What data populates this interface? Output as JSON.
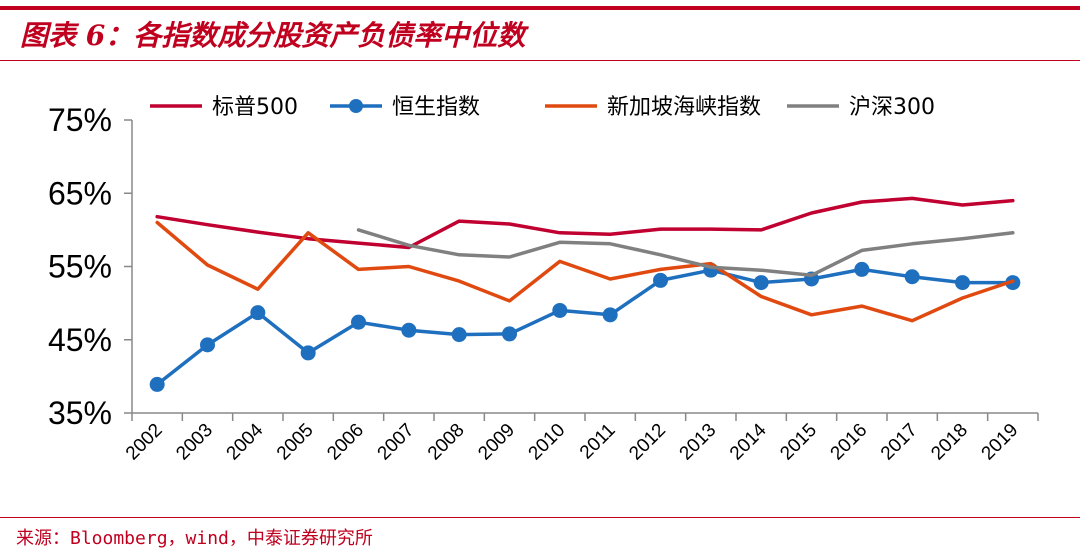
{
  "header": {
    "title": "图表 6：各指数成分股资产负债率中位数"
  },
  "footer": {
    "source": "来源：Bloomberg，wind，中泰证券研究所"
  },
  "colors": {
    "brand_red": "#c0001f",
    "sp500": "#c00030",
    "hsi": "#1f6fbf",
    "sti": "#e04a10",
    "csi300": "#808080"
  },
  "chart_data": {
    "type": "line",
    "title": "",
    "xlabel": "",
    "ylabel": "",
    "ylim": [
      0.35,
      0.75
    ],
    "yticks": [
      "35%",
      "45%",
      "55%",
      "65%",
      "75%"
    ],
    "yticks_values": [
      0.35,
      0.45,
      0.55,
      0.65,
      0.75
    ],
    "categories": [
      "2002",
      "2003",
      "2004",
      "2005",
      "2006",
      "2007",
      "2008",
      "2009",
      "2010",
      "2011",
      "2012",
      "2013",
      "2014",
      "2015",
      "2016",
      "2017",
      "2018",
      "2019"
    ],
    "legend_position": "top",
    "series": [
      {
        "name": "标普500",
        "color": "#c00030",
        "markers": false,
        "values": [
          0.618,
          0.607,
          0.597,
          0.588,
          0.582,
          0.576,
          0.612,
          0.608,
          0.596,
          0.594,
          0.601,
          0.601,
          0.6,
          0.623,
          0.638,
          0.643,
          0.634,
          0.64
        ]
      },
      {
        "name": "恒生指数",
        "color": "#1f6fbf",
        "markers": true,
        "values": [
          0.389,
          0.443,
          0.487,
          0.432,
          0.474,
          0.463,
          0.457,
          0.458,
          0.49,
          0.484,
          0.531,
          0.545,
          0.528,
          0.533,
          0.546,
          0.536,
          0.528,
          0.528
        ]
      },
      {
        "name": "新加坡海峡指数",
        "color": "#e04a10",
        "markers": false,
        "values": [
          0.61,
          0.552,
          0.519,
          0.596,
          0.546,
          0.55,
          0.53,
          0.503,
          0.557,
          0.533,
          0.546,
          0.554,
          0.509,
          0.484,
          0.496,
          0.476,
          0.507,
          0.53
        ]
      },
      {
        "name": "沪深300",
        "color": "#808080",
        "markers": false,
        "values": [
          null,
          null,
          null,
          null,
          0.6,
          0.579,
          0.566,
          0.563,
          0.583,
          0.581,
          0.566,
          0.549,
          0.545,
          0.538,
          0.572,
          0.581,
          0.588,
          0.596
        ]
      }
    ]
  }
}
